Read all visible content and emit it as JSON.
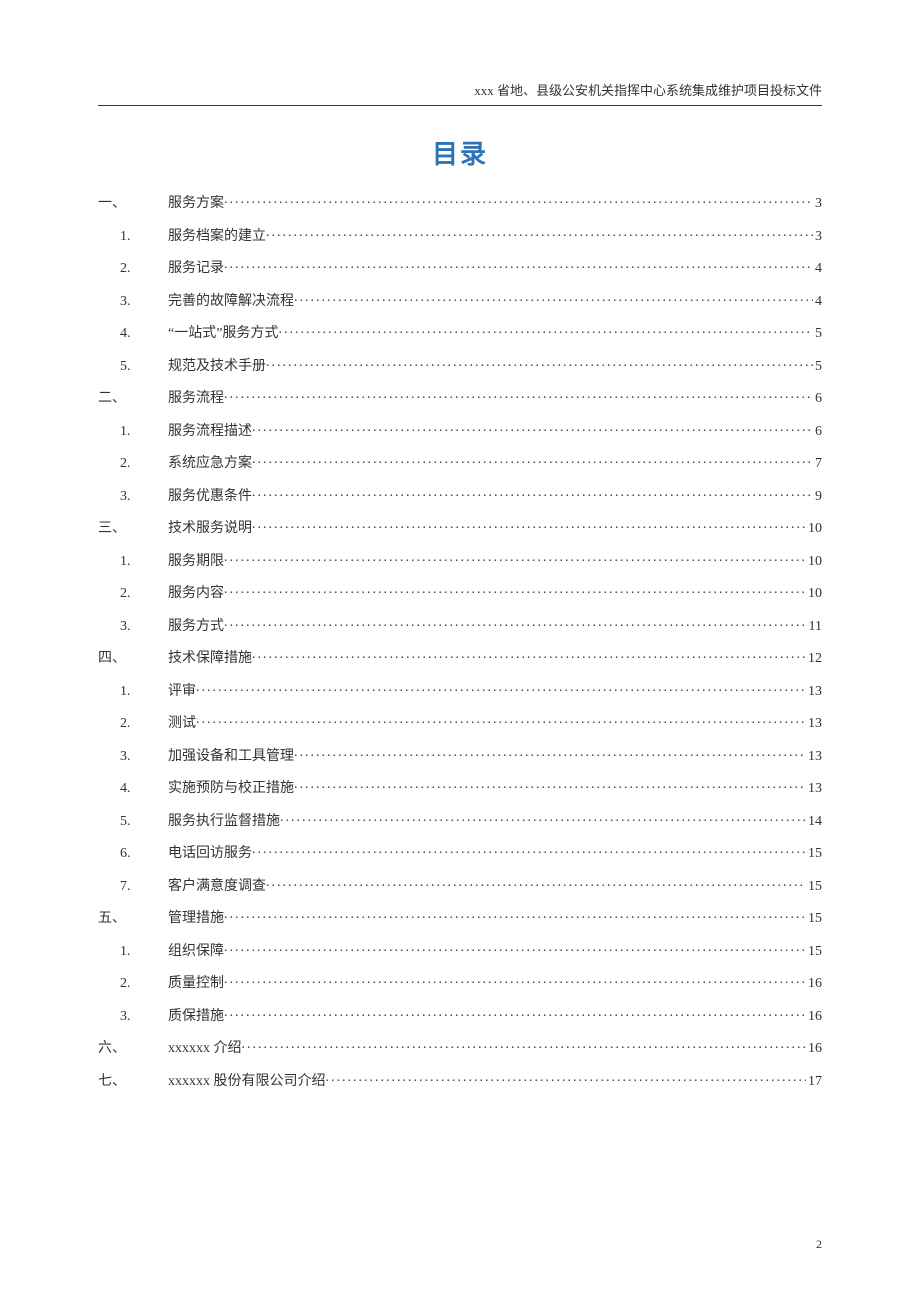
{
  "header_text": "xxx 省地、县级公安机关指挥中心系统集成维护项目投标文件",
  "title": "目录",
  "page_number": "2",
  "colors": {
    "title_color": "#2e74b5",
    "text_color": "#333333",
    "background": "#ffffff",
    "rule_color": "#333333"
  },
  "typography": {
    "title_fontsize": 26,
    "body_fontsize": 14,
    "header_fontsize": 13,
    "pagenum_fontsize": 12
  },
  "toc": [
    {
      "level": 1,
      "num": "一、",
      "text": "服务方案",
      "page": "3"
    },
    {
      "level": 2,
      "num": "1.",
      "text": "服务档案的建立",
      "page": "3"
    },
    {
      "level": 2,
      "num": "2.",
      "text": "服务记录",
      "page": "4"
    },
    {
      "level": 2,
      "num": "3.",
      "text": "完善的故障解决流程",
      "page": "4"
    },
    {
      "level": 2,
      "num": "4.",
      "text": "“一站式”服务方式",
      "page": "5"
    },
    {
      "level": 2,
      "num": "5.",
      "text": "规范及技术手册",
      "page": "5"
    },
    {
      "level": 1,
      "num": "二、",
      "text": "服务流程",
      "page": "6"
    },
    {
      "level": 2,
      "num": "1.",
      "text": "服务流程描述",
      "page": "6"
    },
    {
      "level": 2,
      "num": "2.",
      "text": "系统应急方案",
      "page": "7"
    },
    {
      "level": 2,
      "num": "3.",
      "text": "服务优惠条件",
      "page": "9"
    },
    {
      "level": 1,
      "num": "三、",
      "text": "技术服务说明",
      "page": "10"
    },
    {
      "level": 2,
      "num": "1.",
      "text": "服务期限",
      "page": "10"
    },
    {
      "level": 2,
      "num": "2.",
      "text": "服务内容",
      "page": "10"
    },
    {
      "level": 2,
      "num": "3.",
      "text": "服务方式",
      "page": "11"
    },
    {
      "level": 1,
      "num": "四、",
      "text": "技术保障措施",
      "page": "12"
    },
    {
      "level": 2,
      "num": "1.",
      "text": "评审",
      "page": "13"
    },
    {
      "level": 2,
      "num": "2.",
      "text": "测试",
      "page": "13"
    },
    {
      "level": 2,
      "num": "3.",
      "text": "加强设备和工具管理",
      "page": "13"
    },
    {
      "level": 2,
      "num": "4.",
      "text": "实施预防与校正措施",
      "page": "13"
    },
    {
      "level": 2,
      "num": "5.",
      "text": "服务执行监督措施",
      "page": "14"
    },
    {
      "level": 2,
      "num": "6.",
      "text": "电话回访服务",
      "page": "15"
    },
    {
      "level": 2,
      "num": "7.",
      "text": "客户满意度调查",
      "page": "15"
    },
    {
      "level": 1,
      "num": "五、",
      "text": "管理措施",
      "page": "15"
    },
    {
      "level": 2,
      "num": "1.",
      "text": "组织保障",
      "page": "15"
    },
    {
      "level": 2,
      "num": "2.",
      "text": "质量控制",
      "page": "16"
    },
    {
      "level": 2,
      "num": "3.",
      "text": "质保措施",
      "page": "16"
    },
    {
      "level": 1,
      "num": "六、",
      "text": "xxxxxx 介绍",
      "page": "16"
    },
    {
      "level": 1,
      "num": "七、",
      "text": "xxxxxx 股份有限公司介绍",
      "page": "17"
    }
  ]
}
